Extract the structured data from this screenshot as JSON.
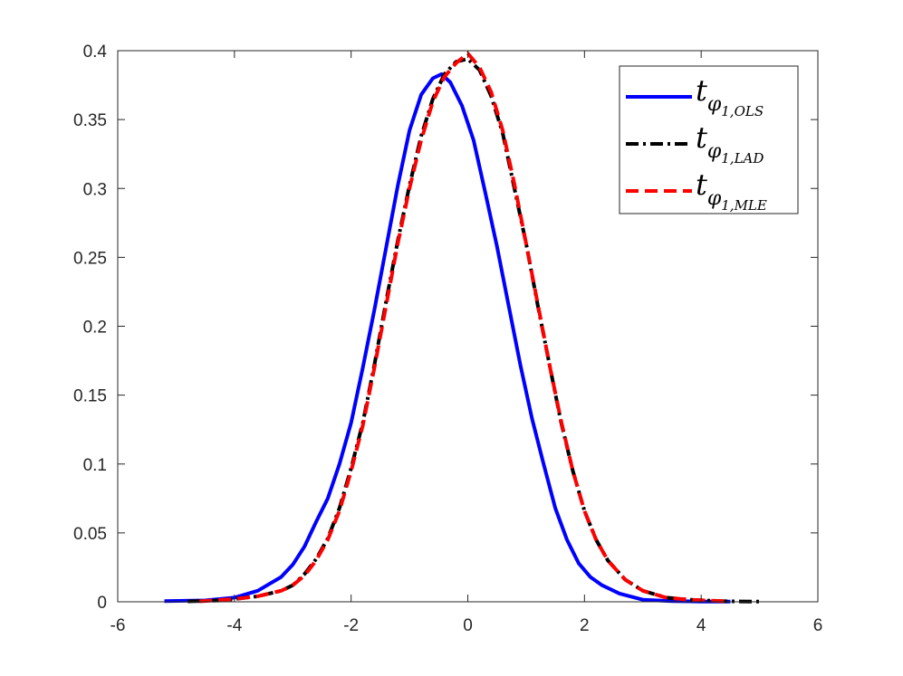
{
  "chart_data": {
    "type": "line",
    "title": "",
    "xlabel": "",
    "ylabel": "",
    "xlim": [
      -6,
      6
    ],
    "ylim": [
      0,
      0.4
    ],
    "xticks": [
      -6,
      -4,
      -2,
      0,
      2,
      4,
      6
    ],
    "xtick_labels": [
      "-6",
      "-4",
      "-2",
      "0",
      "2",
      "4",
      "6"
    ],
    "yticks": [
      0,
      0.05,
      0.1,
      0.15,
      0.2,
      0.25,
      0.3,
      0.35,
      0.4
    ],
    "ytick_labels": [
      "0",
      "0.05",
      "0.1",
      "0.15",
      "0.2",
      "0.25",
      "0.3",
      "0.35",
      "0.4"
    ],
    "grid": false,
    "legend_position": "top-right",
    "series": [
      {
        "name": "OLS",
        "legend": {
          "base": "t",
          "sub": "φ",
          "subsub": "1,OLS"
        },
        "color": "#0000ff",
        "style": "solid",
        "x": [
          -5.2,
          -4.5,
          -4.0,
          -3.6,
          -3.2,
          -3.0,
          -2.8,
          -2.6,
          -2.4,
          -2.2,
          -2.0,
          -1.8,
          -1.6,
          -1.4,
          -1.2,
          -1.0,
          -0.8,
          -0.6,
          -0.45,
          -0.3,
          -0.1,
          0.1,
          0.3,
          0.5,
          0.7,
          0.9,
          1.1,
          1.3,
          1.5,
          1.7,
          1.9,
          2.1,
          2.3,
          2.6,
          3.0,
          3.5,
          4.0,
          4.5
        ],
        "y": [
          0.0005,
          0.001,
          0.003,
          0.008,
          0.018,
          0.027,
          0.04,
          0.058,
          0.075,
          0.1,
          0.13,
          0.17,
          0.212,
          0.257,
          0.302,
          0.342,
          0.368,
          0.38,
          0.383,
          0.377,
          0.36,
          0.335,
          0.297,
          0.258,
          0.215,
          0.172,
          0.133,
          0.1,
          0.068,
          0.045,
          0.028,
          0.018,
          0.012,
          0.006,
          0.0015,
          0.0005,
          0.0002,
          0.0001
        ]
      },
      {
        "name": "LAD",
        "legend": {
          "base": "t",
          "sub": "φ",
          "subsub": "1,LAD"
        },
        "color": "#000000",
        "style": "dashdot",
        "x": [
          -4.8,
          -4.2,
          -3.6,
          -3.2,
          -3.0,
          -2.8,
          -2.6,
          -2.4,
          -2.2,
          -2.0,
          -1.8,
          -1.6,
          -1.4,
          -1.2,
          -1.0,
          -0.8,
          -0.6,
          -0.4,
          -0.2,
          0.0,
          0.2,
          0.4,
          0.6,
          0.8,
          1.0,
          1.2,
          1.4,
          1.6,
          1.8,
          2.0,
          2.2,
          2.4,
          2.7,
          3.0,
          3.4,
          3.8,
          4.4,
          5.0
        ],
        "y": [
          0.0003,
          0.001,
          0.004,
          0.008,
          0.012,
          0.02,
          0.031,
          0.046,
          0.068,
          0.097,
          0.13,
          0.172,
          0.218,
          0.262,
          0.302,
          0.338,
          0.365,
          0.383,
          0.392,
          0.394,
          0.386,
          0.367,
          0.34,
          0.3,
          0.26,
          0.215,
          0.172,
          0.13,
          0.095,
          0.066,
          0.045,
          0.03,
          0.016,
          0.008,
          0.003,
          0.0015,
          0.0004,
          0.0001
        ]
      },
      {
        "name": "MLE",
        "legend": {
          "base": "t",
          "sub": "φ",
          "subsub": "1,MLE"
        },
        "color": "#ff0000",
        "style": "dashed",
        "x": [
          -4.6,
          -4.0,
          -3.6,
          -3.2,
          -3.0,
          -2.8,
          -2.6,
          -2.4,
          -2.2,
          -2.0,
          -1.8,
          -1.6,
          -1.4,
          -1.2,
          -1.0,
          -0.8,
          -0.6,
          -0.4,
          -0.2,
          0.0,
          0.2,
          0.4,
          0.6,
          0.8,
          1.0,
          1.2,
          1.4,
          1.6,
          1.8,
          2.0,
          2.2,
          2.4,
          2.7,
          3.0,
          3.4,
          3.8,
          4.5
        ],
        "y": [
          0.0003,
          0.002,
          0.004,
          0.008,
          0.012,
          0.019,
          0.03,
          0.045,
          0.066,
          0.095,
          0.128,
          0.17,
          0.215,
          0.26,
          0.3,
          0.335,
          0.363,
          0.381,
          0.391,
          0.398,
          0.388,
          0.37,
          0.342,
          0.303,
          0.26,
          0.216,
          0.172,
          0.131,
          0.095,
          0.066,
          0.045,
          0.03,
          0.016,
          0.008,
          0.003,
          0.0015,
          0.0002
        ]
      }
    ]
  }
}
